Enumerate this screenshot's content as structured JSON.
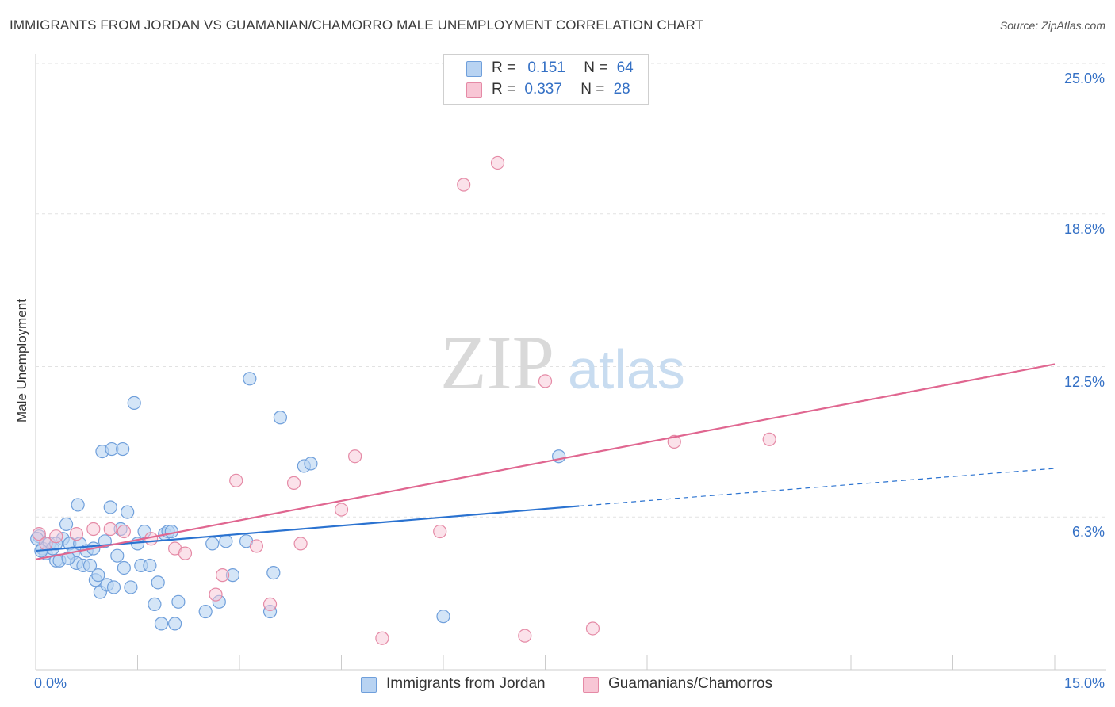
{
  "title": "IMMIGRANTS FROM JORDAN VS GUAMANIAN/CHAMORRO MALE UNEMPLOYMENT CORRELATION CHART",
  "source": "Source: ZipAtlas.com",
  "watermark": {
    "zip": "ZIP",
    "atlas": "atlas"
  },
  "legend_top": {
    "r_label": "R =",
    "n_label": "N =",
    "series": [
      {
        "r": "0.151",
        "n": "64"
      },
      {
        "r": "0.337",
        "n": "28"
      }
    ]
  },
  "legend_bottom": [
    "Immigrants from Jordan",
    "Guamanians/Chamorros"
  ],
  "colors": {
    "blue_fill": "#b8d3f2",
    "blue_stroke": "#6f9fdb",
    "blue_line": "#2a72d0",
    "pink_fill": "#f8c6d5",
    "pink_stroke": "#e58aa6",
    "pink_line": "#e06690",
    "tick_label": "#3470c5"
  },
  "chart_data": {
    "type": "scatter",
    "title": "IMMIGRANTS FROM JORDAN VS GUAMANIAN/CHAMORRO MALE UNEMPLOYMENT CORRELATION CHART",
    "xlabel": "",
    "ylabel": "Male Unemployment",
    "xlim": [
      0,
      15
    ],
    "ylim": [
      0,
      25
    ],
    "x_tick_labels": [
      "0.0%",
      "15.0%"
    ],
    "y_ticks": [
      6.3,
      12.5,
      18.8,
      25.0
    ],
    "y_tick_labels": [
      "6.3%",
      "12.5%",
      "18.8%",
      "25.0%"
    ],
    "grid": true,
    "legend_position": "top-center",
    "series": [
      {
        "name": "Immigrants from Jordan",
        "r": 0.151,
        "n": 64,
        "trend": {
          "x0": 0,
          "y0": 4.9,
          "x1": 8.0,
          "y1": 6.75,
          "dashed_to_x": 15,
          "dashed_to_y": 8.3
        },
        "points": [
          [
            0.05,
            5.5
          ],
          [
            0.1,
            5.0
          ],
          [
            0.15,
            4.8
          ],
          [
            0.2,
            5.2
          ],
          [
            0.25,
            5.0
          ],
          [
            0.3,
            4.5
          ],
          [
            0.35,
            4.5
          ],
          [
            0.4,
            5.4
          ],
          [
            0.45,
            6.0
          ],
          [
            0.5,
            5.2
          ],
          [
            0.55,
            4.8
          ],
          [
            0.6,
            4.4
          ],
          [
            0.62,
            6.8
          ],
          [
            0.65,
            5.2
          ],
          [
            0.7,
            4.3
          ],
          [
            0.75,
            4.9
          ],
          [
            0.8,
            4.3
          ],
          [
            0.85,
            5.0
          ],
          [
            0.88,
            3.7
          ],
          [
            0.92,
            3.9
          ],
          [
            0.95,
            3.2
          ],
          [
            0.98,
            9.0
          ],
          [
            1.02,
            5.3
          ],
          [
            1.05,
            3.5
          ],
          [
            1.1,
            6.7
          ],
          [
            1.12,
            9.1
          ],
          [
            1.15,
            3.4
          ],
          [
            1.2,
            4.7
          ],
          [
            1.25,
            5.8
          ],
          [
            1.28,
            9.1
          ],
          [
            1.3,
            4.2
          ],
          [
            1.35,
            6.5
          ],
          [
            1.4,
            3.4
          ],
          [
            1.45,
            11.0
          ],
          [
            1.5,
            5.2
          ],
          [
            1.55,
            4.3
          ],
          [
            1.6,
            5.7
          ],
          [
            1.68,
            4.3
          ],
          [
            1.75,
            2.7
          ],
          [
            1.8,
            3.6
          ],
          [
            1.85,
            1.9
          ],
          [
            1.9,
            5.6
          ],
          [
            1.95,
            5.7
          ],
          [
            2.0,
            5.7
          ],
          [
            2.05,
            1.9
          ],
          [
            2.1,
            2.8
          ],
          [
            2.5,
            2.4
          ],
          [
            2.6,
            5.2
          ],
          [
            2.7,
            2.8
          ],
          [
            2.8,
            5.3
          ],
          [
            2.9,
            3.9
          ],
          [
            3.1,
            5.3
          ],
          [
            3.15,
            12.0
          ],
          [
            3.45,
            2.4
          ],
          [
            3.5,
            4.0
          ],
          [
            3.6,
            10.4
          ],
          [
            3.95,
            8.4
          ],
          [
            4.05,
            8.5
          ],
          [
            6.0,
            2.2
          ],
          [
            7.7,
            8.8
          ],
          [
            0.02,
            5.4
          ],
          [
            0.08,
            4.9
          ],
          [
            0.3,
            5.2
          ],
          [
            0.48,
            4.6
          ]
        ]
      },
      {
        "name": "Guamanians/Chamorros",
        "r": 0.337,
        "n": 28,
        "trend": {
          "x0": 0,
          "y0": 4.55,
          "x1": 15,
          "y1": 12.6
        },
        "points": [
          [
            0.05,
            5.6
          ],
          [
            0.15,
            5.2
          ],
          [
            0.3,
            5.5
          ],
          [
            0.6,
            5.6
          ],
          [
            0.85,
            5.8
          ],
          [
            1.1,
            5.8
          ],
          [
            1.3,
            5.7
          ],
          [
            1.7,
            5.4
          ],
          [
            2.05,
            5.0
          ],
          [
            2.2,
            4.8
          ],
          [
            2.65,
            3.1
          ],
          [
            2.75,
            3.9
          ],
          [
            2.95,
            7.8
          ],
          [
            3.25,
            5.1
          ],
          [
            3.45,
            2.7
          ],
          [
            3.8,
            7.7
          ],
          [
            3.9,
            5.2
          ],
          [
            4.5,
            6.6
          ],
          [
            4.7,
            8.8
          ],
          [
            5.1,
            1.3
          ],
          [
            5.95,
            5.7
          ],
          [
            6.3,
            20.0
          ],
          [
            6.8,
            20.9
          ],
          [
            7.2,
            1.4
          ],
          [
            7.5,
            11.9
          ],
          [
            8.2,
            1.7
          ],
          [
            9.4,
            9.4
          ],
          [
            10.8,
            9.5
          ]
        ]
      }
    ]
  }
}
